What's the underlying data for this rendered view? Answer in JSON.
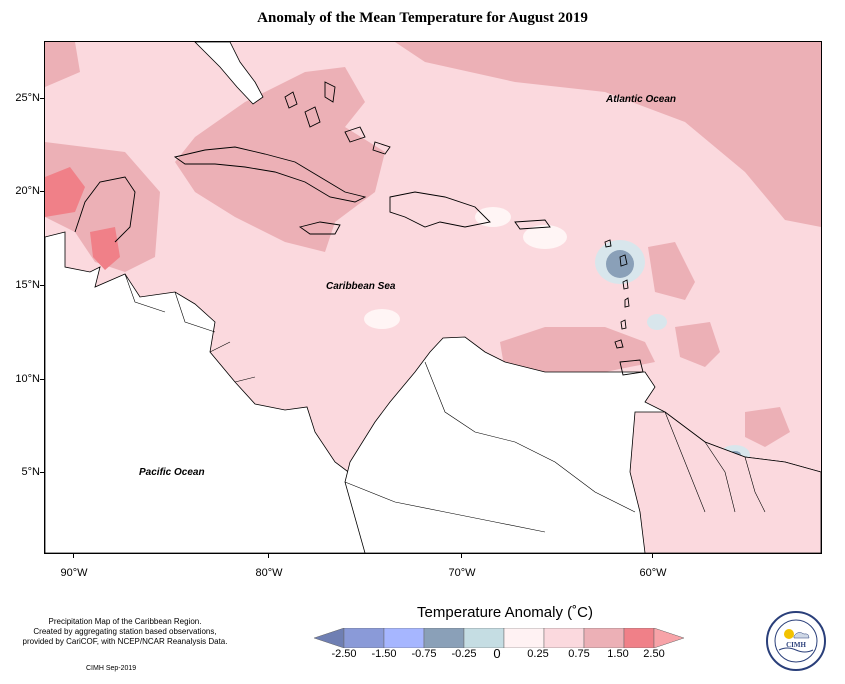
{
  "title": "Anomaly of the Mean Temperature for August 2019",
  "map": {
    "latitude_labels": [
      "25°N",
      "20°N",
      "15°N",
      "10°N",
      "5°N"
    ],
    "longitude_labels": [
      "90°W",
      "80°W",
      "70°W",
      "60°W"
    ],
    "ocean_labels": {
      "atlantic": "Atlantic Ocean",
      "caribbean": "Caribbean Sea",
      "pacific": "Pacific Ocean"
    },
    "colors": {
      "anomaly_0_25_to_0_75": "#fbd9de",
      "anomaly_0_75_to_1_50": "#ecb0b6",
      "anomaly_1_50_to_2_50": "#f08088",
      "anomaly_0_to_0_25": "#fff5f5",
      "anomaly_neg_0_25_to_0": "#d8e6ec",
      "anomaly_neg_0_75_to_neg_0_25": "#8aa0b8",
      "land_no_data": "#ffffff",
      "coastline": "#000000"
    }
  },
  "legend": {
    "title": "Temperature Anomaly (˚C)",
    "labels": [
      "-2.50",
      "-1.50",
      "-0.75",
      "-0.25",
      "0",
      "0.25",
      "0.75",
      "1.50",
      "2.50"
    ],
    "colors": [
      "#6f7fb3",
      "#8a9ad8",
      "#a6b6ff",
      "#8aa0b8",
      "#c5dde3",
      "#fff2f3",
      "#fbd9de",
      "#ecb0b6",
      "#f08088",
      "#f7a3a8"
    ]
  },
  "credits": {
    "line1": "Precipitation Map of the Caribbean Region.",
    "line2": "Created by aggregating station based observations,",
    "line3": "provided by CariCOF, with NCEP/NCAR Reanalysis Data.",
    "stamp": "CIMH Sep-2019"
  },
  "logo": {
    "text": "CIMH",
    "icon": "cimh-logo-icon"
  }
}
